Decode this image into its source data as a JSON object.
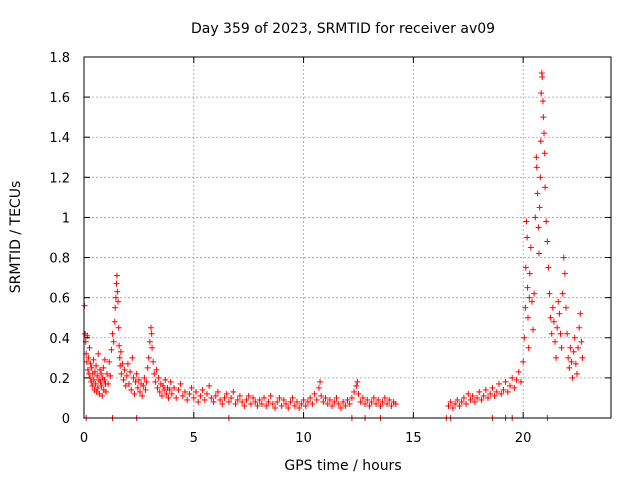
{
  "chart_data": {
    "type": "scatter",
    "title": "Day 359 of 2023, SRMTID for receiver av09",
    "xlabel": "GPS time / hours",
    "ylabel": "SRMTID / TECUs",
    "xlim": [
      0,
      24
    ],
    "ylim": [
      0,
      1.8
    ],
    "xticks": [
      0,
      5,
      10,
      15,
      20
    ],
    "yticks": [
      0,
      0.2,
      0.4,
      0.6,
      0.8,
      1,
      1.2,
      1.4,
      1.6,
      1.8
    ],
    "xtick_labels": [
      "0",
      "5",
      "10",
      "15",
      "20"
    ],
    "ytick_labels": [
      "0",
      "0.2",
      "0.4",
      "0.6",
      "0.8",
      "1",
      "1.2",
      "1.4",
      "1.6",
      "1.8"
    ],
    "grid": true,
    "marker": "+",
    "color": "#ff0000",
    "series": [
      {
        "name": "av09",
        "points": [
          [
            0.02,
            0.56
          ],
          [
            0.05,
            0.42
          ],
          [
            0.08,
            0.38
          ],
          [
            0.1,
            0.32
          ],
          [
            0.13,
            0.28
          ],
          [
            0.15,
            0.41
          ],
          [
            0.18,
            0.24
          ],
          [
            0.2,
            0.3
          ],
          [
            0.23,
            0.22
          ],
          [
            0.25,
            0.35
          ],
          [
            0.28,
            0.2
          ],
          [
            0.3,
            0.27
          ],
          [
            0.33,
            0.18
          ],
          [
            0.35,
            0.25
          ],
          [
            0.38,
            0.16
          ],
          [
            0.4,
            0.22
          ],
          [
            0.43,
            0.29
          ],
          [
            0.45,
            0.19
          ],
          [
            0.48,
            0.14
          ],
          [
            0.5,
            0.23
          ],
          [
            0.53,
            0.17
          ],
          [
            0.55,
            0.26
          ],
          [
            0.58,
            0.13
          ],
          [
            0.6,
            0.21
          ],
          [
            0.63,
            0.15
          ],
          [
            0.65,
            0.32
          ],
          [
            0.68,
            0.19
          ],
          [
            0.7,
            0.12
          ],
          [
            0.73,
            0.24
          ],
          [
            0.75,
            0.18
          ],
          [
            0.78,
            0.22
          ],
          [
            0.8,
            0.16
          ],
          [
            0.83,
            0.11
          ],
          [
            0.85,
            0.2
          ],
          [
            0.88,
            0.25
          ],
          [
            0.9,
            0.14
          ],
          [
            0.93,
            0.19
          ],
          [
            0.95,
            0.29
          ],
          [
            0.98,
            0.17
          ],
          [
            1.0,
            0.13
          ],
          [
            1.05,
            0.22
          ],
          [
            1.1,
            0.17
          ],
          [
            1.15,
            0.28
          ],
          [
            1.2,
            0.21
          ],
          [
            1.25,
            0.34
          ],
          [
            1.3,
            0.42
          ],
          [
            1.35,
            0.38
          ],
          [
            1.4,
            0.48
          ],
          [
            1.42,
            0.55
          ],
          [
            1.45,
            0.6
          ],
          [
            1.48,
            0.67
          ],
          [
            1.5,
            0.71
          ],
          [
            1.52,
            0.63
          ],
          [
            1.55,
            0.58
          ],
          [
            1.58,
            0.45
          ],
          [
            1.6,
            0.36
          ],
          [
            1.63,
            0.3
          ],
          [
            1.65,
            0.26
          ],
          [
            1.68,
            0.33
          ],
          [
            1.7,
            0.22
          ],
          [
            1.75,
            0.27
          ],
          [
            1.8,
            0.19
          ],
          [
            1.85,
            0.24
          ],
          [
            1.9,
            0.16
          ],
          [
            1.95,
            0.21
          ],
          [
            2.0,
            0.27
          ],
          [
            2.05,
            0.17
          ],
          [
            2.1,
            0.23
          ],
          [
            2.15,
            0.14
          ],
          [
            2.2,
            0.3
          ],
          [
            2.25,
            0.2
          ],
          [
            2.3,
            0.12
          ],
          [
            2.35,
            0.18
          ],
          [
            2.4,
            0.22
          ],
          [
            2.45,
            0.15
          ],
          [
            2.5,
            0.19
          ],
          [
            2.55,
            0.13
          ],
          [
            2.6,
            0.17
          ],
          [
            2.65,
            0.11
          ],
          [
            2.7,
            0.16
          ],
          [
            2.75,
            0.2
          ],
          [
            2.8,
            0.14
          ],
          [
            2.85,
            0.18
          ],
          [
            2.9,
            0.25
          ],
          [
            2.95,
            0.3
          ],
          [
            3.0,
            0.38
          ],
          [
            3.05,
            0.45
          ],
          [
            3.08,
            0.42
          ],
          [
            3.1,
            0.35
          ],
          [
            3.15,
            0.28
          ],
          [
            3.2,
            0.22
          ],
          [
            3.25,
            0.18
          ],
          [
            3.3,
            0.24
          ],
          [
            3.35,
            0.15
          ],
          [
            3.4,
            0.2
          ],
          [
            3.45,
            0.13
          ],
          [
            3.5,
            0.17
          ],
          [
            3.55,
            0.11
          ],
          [
            3.6,
            0.16
          ],
          [
            3.65,
            0.14
          ],
          [
            3.7,
            0.19
          ],
          [
            3.75,
            0.12
          ],
          [
            3.8,
            0.15
          ],
          [
            3.85,
            0.1
          ],
          [
            3.9,
            0.14
          ],
          [
            3.95,
            0.18
          ],
          [
            4.0,
            0.12
          ],
          [
            4.1,
            0.15
          ],
          [
            4.2,
            0.1
          ],
          [
            4.3,
            0.14
          ],
          [
            4.4,
            0.17
          ],
          [
            4.5,
            0.11
          ],
          [
            4.6,
            0.13
          ],
          [
            4.7,
            0.09
          ],
          [
            4.8,
            0.12
          ],
          [
            4.9,
            0.15
          ],
          [
            5.0,
            0.1
          ],
          [
            5.1,
            0.13
          ],
          [
            5.2,
            0.08
          ],
          [
            5.3,
            0.11
          ],
          [
            5.4,
            0.14
          ],
          [
            5.5,
            0.09
          ],
          [
            5.6,
            0.12
          ],
          [
            5.7,
            0.16
          ],
          [
            5.8,
            0.1
          ],
          [
            5.9,
            0.08
          ],
          [
            6.0,
            0.11
          ],
          [
            6.1,
            0.13
          ],
          [
            6.2,
            0.09
          ],
          [
            6.3,
            0.07
          ],
          [
            6.4,
            0.1
          ],
          [
            6.5,
            0.12
          ],
          [
            6.6,
            0.08
          ],
          [
            6.7,
            0.1
          ],
          [
            6.8,
            0.13
          ],
          [
            6.9,
            0.07
          ],
          [
            7.0,
            0.09
          ],
          [
            7.1,
            0.11
          ],
          [
            7.2,
            0.08
          ],
          [
            7.3,
            0.06
          ],
          [
            7.4,
            0.09
          ],
          [
            7.5,
            0.11
          ],
          [
            7.6,
            0.07
          ],
          [
            7.7,
            0.1
          ],
          [
            7.8,
            0.08
          ],
          [
            7.9,
            0.06
          ],
          [
            8.0,
            0.09
          ],
          [
            8.1,
            0.07
          ],
          [
            8.2,
            0.1
          ],
          [
            8.3,
            0.06
          ],
          [
            8.4,
            0.08
          ],
          [
            8.5,
            0.11
          ],
          [
            8.6,
            0.07
          ],
          [
            8.7,
            0.05
          ],
          [
            8.8,
            0.08
          ],
          [
            8.9,
            0.1
          ],
          [
            9.0,
            0.06
          ],
          [
            9.1,
            0.09
          ],
          [
            9.2,
            0.07
          ],
          [
            9.3,
            0.05
          ],
          [
            9.4,
            0.08
          ],
          [
            9.5,
            0.1
          ],
          [
            9.6,
            0.06
          ],
          [
            9.7,
            0.08
          ],
          [
            9.8,
            0.05
          ],
          [
            9.9,
            0.07
          ],
          [
            10.0,
            0.09
          ],
          [
            10.1,
            0.06
          ],
          [
            10.2,
            0.08
          ],
          [
            10.3,
            0.1
          ],
          [
            10.4,
            0.07
          ],
          [
            10.5,
            0.12
          ],
          [
            10.6,
            0.09
          ],
          [
            10.7,
            0.15
          ],
          [
            10.75,
            0.18
          ],
          [
            10.8,
            0.11
          ],
          [
            10.9,
            0.08
          ],
          [
            11.0,
            0.1
          ],
          [
            11.1,
            0.07
          ],
          [
            11.2,
            0.09
          ],
          [
            11.3,
            0.06
          ],
          [
            11.4,
            0.08
          ],
          [
            11.5,
            0.1
          ],
          [
            11.6,
            0.07
          ],
          [
            11.7,
            0.05
          ],
          [
            11.8,
            0.08
          ],
          [
            11.9,
            0.06
          ],
          [
            12.0,
            0.09
          ],
          [
            12.1,
            0.07
          ],
          [
            12.2,
            0.1
          ],
          [
            12.3,
            0.13
          ],
          [
            12.4,
            0.16
          ],
          [
            12.45,
            0.18
          ],
          [
            12.5,
            0.12
          ],
          [
            12.6,
            0.08
          ],
          [
            12.7,
            0.1
          ],
          [
            12.8,
            0.07
          ],
          [
            12.9,
            0.09
          ],
          [
            13.0,
            0.06
          ],
          [
            13.1,
            0.08
          ],
          [
            13.2,
            0.1
          ],
          [
            13.3,
            0.07
          ],
          [
            13.4,
            0.09
          ],
          [
            13.5,
            0.06
          ],
          [
            13.6,
            0.08
          ],
          [
            13.7,
            0.1
          ],
          [
            13.8,
            0.07
          ],
          [
            13.9,
            0.09
          ],
          [
            14.0,
            0.06
          ],
          [
            14.1,
            0.08
          ],
          [
            14.2,
            0.07
          ],
          [
            16.6,
            0.06
          ],
          [
            16.7,
            0.08
          ],
          [
            16.8,
            0.05
          ],
          [
            16.9,
            0.07
          ],
          [
            17.0,
            0.09
          ],
          [
            17.1,
            0.06
          ],
          [
            17.2,
            0.08
          ],
          [
            17.3,
            0.1
          ],
          [
            17.4,
            0.07
          ],
          [
            17.5,
            0.12
          ],
          [
            17.6,
            0.09
          ],
          [
            17.7,
            0.11
          ],
          [
            17.8,
            0.08
          ],
          [
            17.9,
            0.1
          ],
          [
            18.0,
            0.13
          ],
          [
            18.1,
            0.09
          ],
          [
            18.2,
            0.11
          ],
          [
            18.3,
            0.14
          ],
          [
            18.4,
            0.1
          ],
          [
            18.5,
            0.12
          ],
          [
            18.6,
            0.15
          ],
          [
            18.7,
            0.11
          ],
          [
            18.8,
            0.13
          ],
          [
            18.9,
            0.17
          ],
          [
            19.0,
            0.12
          ],
          [
            19.1,
            0.14
          ],
          [
            19.2,
            0.18
          ],
          [
            19.3,
            0.13
          ],
          [
            19.4,
            0.16
          ],
          [
            19.5,
            0.2
          ],
          [
            19.6,
            0.15
          ],
          [
            19.7,
            0.19
          ],
          [
            19.8,
            0.23
          ],
          [
            19.9,
            0.18
          ],
          [
            20.0,
            0.28
          ],
          [
            20.05,
            0.4
          ],
          [
            20.1,
            0.55
          ],
          [
            20.12,
            0.75
          ],
          [
            20.15,
            0.98
          ],
          [
            20.18,
            0.9
          ],
          [
            20.2,
            0.65
          ],
          [
            20.22,
            0.5
          ],
          [
            20.25,
            0.35
          ],
          [
            20.28,
            0.6
          ],
          [
            20.3,
            0.72
          ],
          [
            20.35,
            0.85
          ],
          [
            20.4,
            0.58
          ],
          [
            20.45,
            0.44
          ],
          [
            20.5,
            0.62
          ],
          [
            20.55,
            1.0
          ],
          [
            20.6,
            1.3
          ],
          [
            20.62,
            1.25
          ],
          [
            20.65,
            1.12
          ],
          [
            20.7,
            0.95
          ],
          [
            20.72,
            0.82
          ],
          [
            20.75,
            1.05
          ],
          [
            20.78,
            1.2
          ],
          [
            20.8,
            1.38
          ],
          [
            20.82,
            1.62
          ],
          [
            20.85,
            1.72
          ],
          [
            20.87,
            1.7
          ],
          [
            20.9,
            1.58
          ],
          [
            20.92,
            1.5
          ],
          [
            20.95,
            1.42
          ],
          [
            20.98,
            1.32
          ],
          [
            21.0,
            1.15
          ],
          [
            21.05,
            0.98
          ],
          [
            21.1,
            0.88
          ],
          [
            21.15,
            0.75
          ],
          [
            21.2,
            0.62
          ],
          [
            21.25,
            0.5
          ],
          [
            21.3,
            0.42
          ],
          [
            21.35,
            0.55
          ],
          [
            21.4,
            0.48
          ],
          [
            21.45,
            0.38
          ],
          [
            21.5,
            0.3
          ],
          [
            21.55,
            0.45
          ],
          [
            21.6,
            0.58
          ],
          [
            21.65,
            0.52
          ],
          [
            21.7,
            0.42
          ],
          [
            21.75,
            0.35
          ],
          [
            21.8,
            0.62
          ],
          [
            21.85,
            0.8
          ],
          [
            21.9,
            0.72
          ],
          [
            21.95,
            0.55
          ],
          [
            22.0,
            0.42
          ],
          [
            22.05,
            0.3
          ],
          [
            22.1,
            0.25
          ],
          [
            22.15,
            0.35
          ],
          [
            22.2,
            0.28
          ],
          [
            22.25,
            0.2
          ],
          [
            22.3,
            0.33
          ],
          [
            22.35,
            0.4
          ],
          [
            22.4,
            0.27
          ],
          [
            22.45,
            0.22
          ],
          [
            22.5,
            0.35
          ],
          [
            22.55,
            0.45
          ],
          [
            22.6,
            0.52
          ],
          [
            22.65,
            0.38
          ],
          [
            22.7,
            0.3
          ]
        ]
      }
    ],
    "zero_points_x": [
      0.1,
      1.3,
      2.4,
      6.6,
      12.2,
      12.8,
      13.5,
      16.5,
      16.7,
      18.6,
      19.2,
      19.5,
      21.1
    ]
  }
}
